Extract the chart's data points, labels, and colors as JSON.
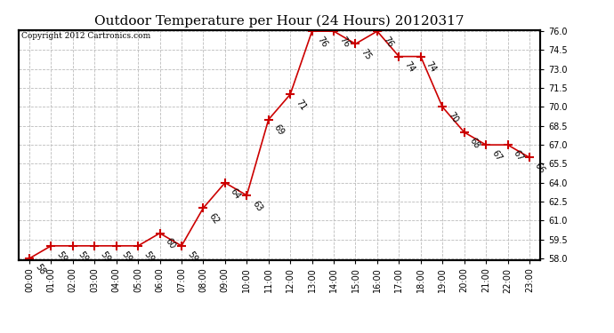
{
  "title": "Outdoor Temperature per Hour (24 Hours) 20120317",
  "copyright": "Copyright 2012 Cartronics.com",
  "hours": [
    0,
    1,
    2,
    3,
    4,
    5,
    6,
    7,
    8,
    9,
    10,
    11,
    12,
    13,
    14,
    15,
    16,
    17,
    18,
    19,
    20,
    21,
    22,
    23
  ],
  "hour_labels": [
    "00:00",
    "01:00",
    "02:00",
    "03:00",
    "04:00",
    "05:00",
    "06:00",
    "07:00",
    "08:00",
    "09:00",
    "10:00",
    "11:00",
    "12:00",
    "13:00",
    "14:00",
    "15:00",
    "16:00",
    "17:00",
    "18:00",
    "19:00",
    "20:00",
    "21:00",
    "22:00",
    "23:00"
  ],
  "temperatures": [
    58,
    59,
    59,
    59,
    59,
    59,
    60,
    59,
    62,
    64,
    63,
    69,
    71,
    76,
    76,
    75,
    76,
    74,
    74,
    70,
    68,
    67,
    67,
    66
  ],
  "ylim_min": 58.0,
  "ylim_max": 76.0,
  "yticks": [
    58.0,
    59.5,
    61.0,
    62.5,
    64.0,
    65.5,
    67.0,
    68.5,
    70.0,
    71.5,
    73.0,
    74.5,
    76.0
  ],
  "line_color": "#cc0000",
  "marker": "+",
  "marker_size": 7,
  "marker_linewidth": 1.5,
  "bg_color": "#ffffff",
  "grid_color": "#bbbbbb",
  "title_fontsize": 11,
  "label_fontsize": 7,
  "annotation_fontsize": 7,
  "copyright_fontsize": 6.5
}
